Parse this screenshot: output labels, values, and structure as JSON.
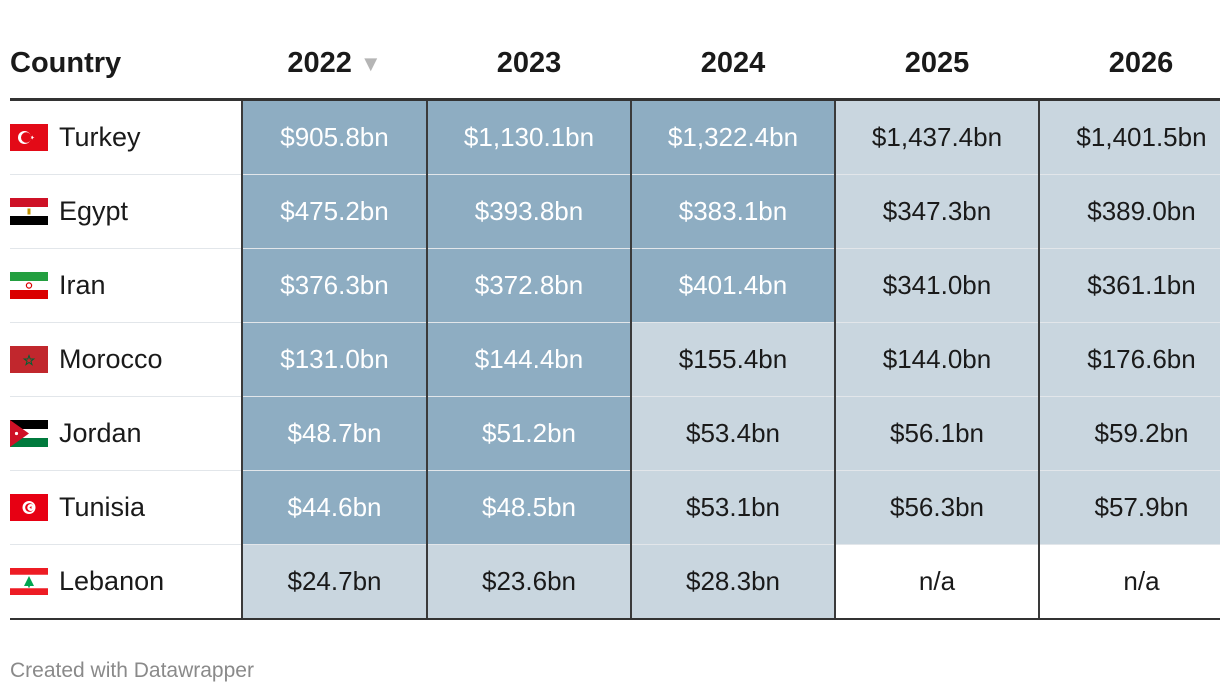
{
  "colors": {
    "dark_fill": "#8eadc2",
    "light_fill": "#c9d6df",
    "empty_fill": "#ffffff",
    "dark_text": "#ffffff",
    "light_text": "#1a1a1a"
  },
  "table": {
    "header": {
      "country": "Country",
      "years": [
        "2022",
        "2023",
        "2024",
        "2025",
        "2026"
      ],
      "sorted_column": "2022",
      "sort_direction": "descending",
      "sort_icon": "sort-descending-icon"
    },
    "footer": "Created with Datawrapper"
  },
  "chart_data": {
    "type": "table",
    "columns": [
      "Country",
      "2022",
      "2023",
      "2024",
      "2025",
      "2026"
    ],
    "rows": [
      {
        "country": "Turkey",
        "flag": "turkey-flag-icon",
        "values": [
          "$905.8bn",
          "$1,130.1bn",
          "$1,322.4bn",
          "$1,437.4bn",
          "$1,401.5bn"
        ],
        "highlight": [
          "dark",
          "dark",
          "dark",
          "light",
          "light"
        ]
      },
      {
        "country": "Egypt",
        "flag": "egypt-flag-icon",
        "values": [
          "$475.2bn",
          "$393.8bn",
          "$383.1bn",
          "$347.3bn",
          "$389.0bn"
        ],
        "highlight": [
          "dark",
          "dark",
          "dark",
          "light",
          "light"
        ]
      },
      {
        "country": "Iran",
        "flag": "iran-flag-icon",
        "values": [
          "$376.3bn",
          "$372.8bn",
          "$401.4bn",
          "$341.0bn",
          "$361.1bn"
        ],
        "highlight": [
          "dark",
          "dark",
          "dark",
          "light",
          "light"
        ]
      },
      {
        "country": "Morocco",
        "flag": "morocco-flag-icon",
        "values": [
          "$131.0bn",
          "$144.4bn",
          "$155.4bn",
          "$144.0bn",
          "$176.6bn"
        ],
        "highlight": [
          "dark",
          "dark",
          "light",
          "light",
          "light"
        ]
      },
      {
        "country": "Jordan",
        "flag": "jordan-flag-icon",
        "values": [
          "$48.7bn",
          "$51.2bn",
          "$53.4bn",
          "$56.1bn",
          "$59.2bn"
        ],
        "highlight": [
          "dark",
          "dark",
          "light",
          "light",
          "light"
        ]
      },
      {
        "country": "Tunisia",
        "flag": "tunisia-flag-icon",
        "values": [
          "$44.6bn",
          "$48.5bn",
          "$53.1bn",
          "$56.3bn",
          "$57.9bn"
        ],
        "highlight": [
          "dark",
          "dark",
          "light",
          "light",
          "light"
        ]
      },
      {
        "country": "Lebanon",
        "flag": "lebanon-flag-icon",
        "values": [
          "$24.7bn",
          "$23.6bn",
          "$28.3bn",
          "n/a",
          "n/a"
        ],
        "highlight": [
          "light",
          "light",
          "light",
          "none",
          "none"
        ]
      }
    ]
  }
}
